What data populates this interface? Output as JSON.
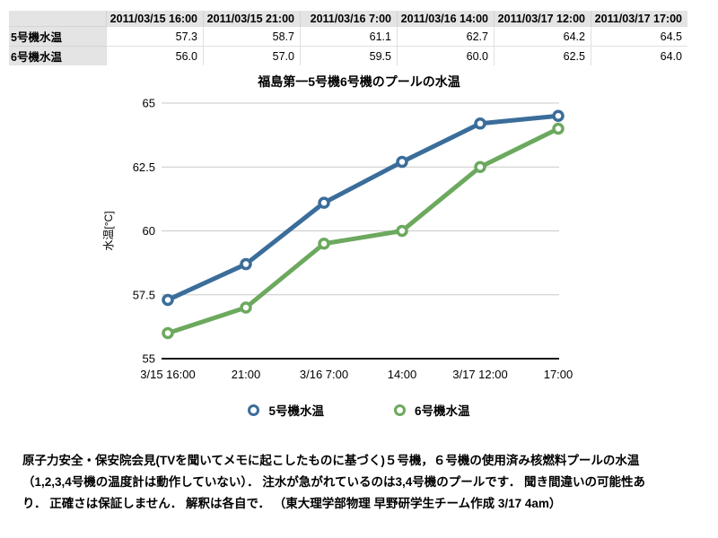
{
  "table": {
    "corner_label": "",
    "columns": [
      "2011/03/15 16:00",
      "2011/03/15 21:00",
      "2011/03/16 7:00",
      "2011/03/16 14:00",
      "2011/03/17 12:00",
      "2011/03/17 17:00"
    ],
    "rows": [
      {
        "label": "5号機水温",
        "values": [
          "57.3",
          "58.7",
          "61.1",
          "62.7",
          "64.2",
          "64.5"
        ]
      },
      {
        "label": "6号機水温",
        "values": [
          "56.0",
          "57.0",
          "59.5",
          "60.0",
          "62.5",
          "64.0"
        ]
      }
    ]
  },
  "chart_data": {
    "type": "line",
    "title": "福島第一5号機6号機のプールの水温",
    "xlabel": "",
    "ylabel": "水温[°C]",
    "categories": [
      "3/15 16:00",
      "21:00",
      "3/16 7:00",
      "14:00",
      "3/17 12:00",
      "17:00"
    ],
    "series": [
      {
        "name": "5号機水温",
        "color": "#3a6d9a",
        "values": [
          57.3,
          58.7,
          61.1,
          62.7,
          64.2,
          64.5
        ]
      },
      {
        "name": "6号機水温",
        "color": "#6ca95e",
        "values": [
          56.0,
          57.0,
          59.5,
          60.0,
          62.5,
          64.0
        ]
      }
    ],
    "ylim": [
      55,
      65
    ],
    "y_ticks": [
      55,
      57.5,
      60,
      62.5,
      65
    ],
    "grid": true,
    "marker": "open-circle",
    "legend_position": "bottom"
  },
  "footnote": {
    "lines": [
      "原子力安全・保安院会見(TVを聞いてメモに起こしたものに基づく)５号機，６号機の使用済み核燃料プールの水温",
      "（1,2,3,4号機の温度計は動作していない）． 注水が急がれているのは3,4号機のプールです． 聞き間違いの可能性あ",
      "り． 正確さは保証しません． 解釈は各自で． （東大理学部物理 早野研学生チーム作成 3/17 4am）"
    ]
  },
  "colors": {
    "series_blue": "#3a6d9a",
    "series_green": "#6ca95e",
    "gridline": "#c9c9c9",
    "axis": "#1a1a1a",
    "table_header_bg": "#e4e4e4"
  }
}
